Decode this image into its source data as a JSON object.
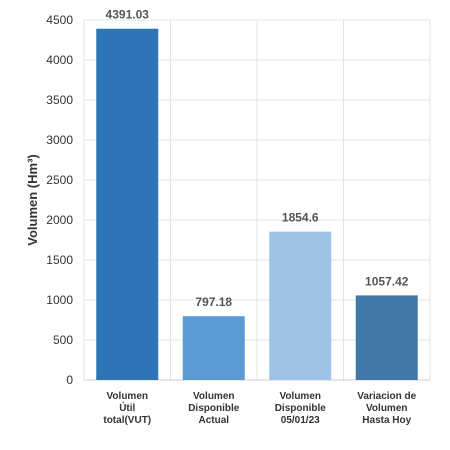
{
  "chart_data": {
    "type": "bar",
    "title": "",
    "ylabel": "Volumen (Hm³)",
    "xlabel": "",
    "ylim": [
      0,
      4500
    ],
    "yticks": [
      0,
      500,
      1000,
      1500,
      2000,
      2500,
      3000,
      3500,
      4000,
      4500
    ],
    "grid": true,
    "categories": [
      [
        "Volumen",
        "Útil",
        "total(VUT)"
      ],
      [
        "Volumen",
        "Disponible",
        "Actual"
      ],
      [
        "Volumen",
        "Disponible",
        "05/01/23"
      ],
      [
        "Variacion de",
        "Volumen",
        "Hasta Hoy"
      ]
    ],
    "values": [
      4391.03,
      797.18,
      1854.6,
      1057.42
    ],
    "value_labels": [
      "4391.03",
      "797.18",
      "1854.6",
      "1057.42"
    ],
    "colors": [
      "#2e75b6",
      "#5b9bd5",
      "#9dc3e6",
      "#4178a8"
    ]
  }
}
